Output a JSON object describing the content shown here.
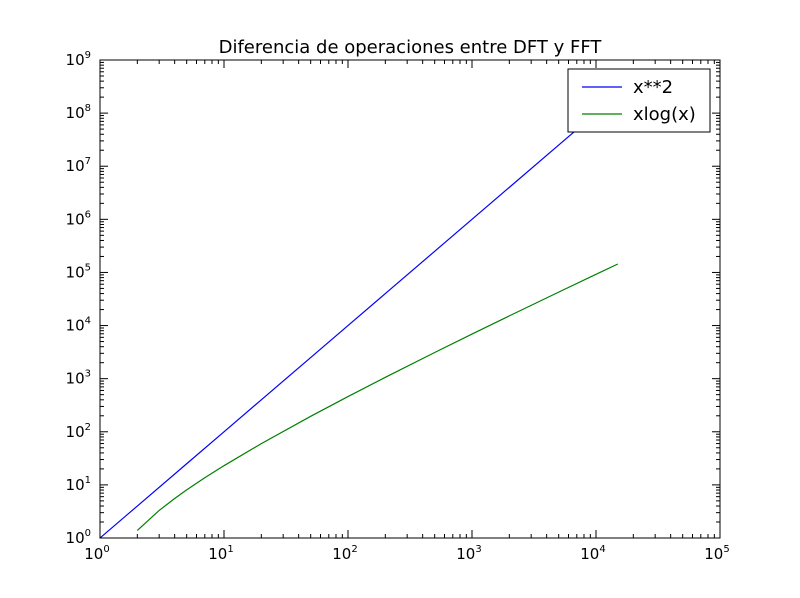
{
  "chart_data": {
    "type": "line",
    "title": "Diferencia de operaciones entre DFT y FFT",
    "xlabel": "",
    "ylabel": "",
    "xscale": "log",
    "yscale": "log",
    "xlim": [
      1,
      100000
    ],
    "ylim": [
      1,
      1000000000
    ],
    "x_ticks": [
      {
        "value": 1,
        "base": "10",
        "exp": "0"
      },
      {
        "value": 10,
        "base": "10",
        "exp": "1"
      },
      {
        "value": 100,
        "base": "10",
        "exp": "2"
      },
      {
        "value": 1000,
        "base": "10",
        "exp": "3"
      },
      {
        "value": 10000,
        "base": "10",
        "exp": "4"
      },
      {
        "value": 100000,
        "base": "10",
        "exp": "5"
      }
    ],
    "y_ticks": [
      {
        "value": 1,
        "base": "10",
        "exp": "0"
      },
      {
        "value": 10,
        "base": "10",
        "exp": "1"
      },
      {
        "value": 100,
        "base": "10",
        "exp": "2"
      },
      {
        "value": 1000,
        "base": "10",
        "exp": "3"
      },
      {
        "value": 10000,
        "base": "10",
        "exp": "4"
      },
      {
        "value": 100000,
        "base": "10",
        "exp": "5"
      },
      {
        "value": 1000000,
        "base": "10",
        "exp": "6"
      },
      {
        "value": 10000000,
        "base": "10",
        "exp": "7"
      },
      {
        "value": 100000000,
        "base": "10",
        "exp": "8"
      },
      {
        "value": 1000000000,
        "base": "10",
        "exp": "9"
      }
    ],
    "grid": false,
    "legend_position": "top-right",
    "series": [
      {
        "name": "x**2",
        "color": "#0000ff",
        "x": [
          1,
          2,
          5,
          10,
          20,
          50,
          100,
          200,
          500,
          1000,
          2000,
          5000,
          10000,
          15000
        ],
        "y": [
          1,
          4,
          25,
          100,
          400,
          2500,
          10000,
          40000,
          250000,
          1000000,
          4000000,
          25000000,
          100000000,
          225000000
        ]
      },
      {
        "name": "xlog(x)",
        "color": "#008000",
        "x": [
          2,
          3,
          4,
          5,
          7,
          10,
          20,
          50,
          100,
          200,
          500,
          1000,
          2000,
          5000,
          10000,
          15000
        ],
        "y": [
          1.39,
          3.3,
          5.55,
          8.05,
          13.6,
          23.0,
          59.9,
          195.6,
          460.5,
          1059.7,
          3107.3,
          6907.8,
          15201.8,
          42586.0,
          92103.4,
          144230.0
        ]
      }
    ]
  }
}
